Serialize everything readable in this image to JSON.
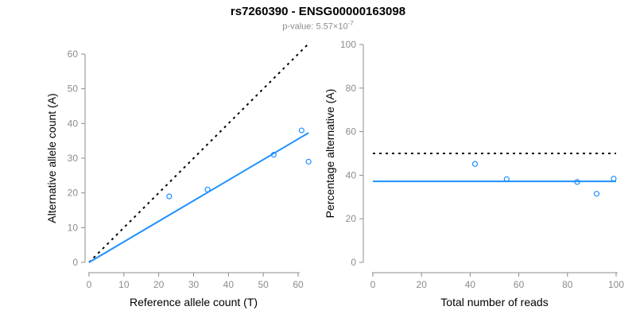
{
  "title": "rs7260390 - ENSG00000163098",
  "subtitle": {
    "text": "p-value: 5.57×10",
    "exponent": "-7"
  },
  "colors": {
    "accent_blue": "#1E90FF",
    "identity_line": "#000000",
    "axis_gray": "#8c8c8c",
    "tick_label_gray": "#8c8c8c",
    "subtitle_gray": "#8c8c8c",
    "title_black": "#000000"
  },
  "chart_data": [
    {
      "type": "scatter",
      "name": "allele-count-scatter",
      "xlabel": "Reference allele count (T)",
      "ylabel": "Alternative allele count (A)",
      "xlim": [
        0,
        60
      ],
      "ylim": [
        0,
        60
      ],
      "xticks": [
        0,
        10,
        20,
        30,
        40,
        50,
        60
      ],
      "yticks": [
        0,
        10,
        20,
        30,
        40,
        50,
        60
      ],
      "points": [
        [
          23,
          19
        ],
        [
          34,
          21
        ],
        [
          53,
          31
        ],
        [
          61,
          38
        ],
        [
          63,
          29
        ]
      ],
      "point_color": "#1E90FF",
      "lines": [
        {
          "name": "identity-line",
          "style": "dotted",
          "color": "#000000",
          "from": [
            0,
            0
          ],
          "to": [
            63,
            63
          ]
        },
        {
          "name": "fit-line",
          "style": "solid",
          "color": "#1E90FF",
          "from": [
            0,
            0
          ],
          "to": [
            63,
            37.3
          ]
        }
      ],
      "grid": false,
      "legend": null
    },
    {
      "type": "scatter",
      "name": "percentage-scatter",
      "xlabel": "Total number of reads",
      "ylabel": "Percentage alternative (A)",
      "xlim": [
        0,
        100
      ],
      "ylim": [
        0,
        100
      ],
      "xticks": [
        0,
        20,
        40,
        60,
        80,
        100
      ],
      "yticks": [
        0,
        20,
        40,
        60,
        80,
        100
      ],
      "points": [
        [
          42,
          45.2
        ],
        [
          55,
          38.2
        ],
        [
          84,
          36.9
        ],
        [
          92,
          31.5
        ],
        [
          99,
          38.4
        ]
      ],
      "point_color": "#1E90FF",
      "lines": [
        {
          "name": "null-line-50pct",
          "style": "dotted",
          "color": "#000000",
          "from": [
            0,
            50
          ],
          "to": [
            100,
            50
          ]
        },
        {
          "name": "fit-line",
          "style": "solid",
          "color": "#1E90FF",
          "from": [
            0,
            37.2
          ],
          "to": [
            100,
            37.2
          ]
        }
      ],
      "grid": false,
      "legend": null
    }
  ]
}
